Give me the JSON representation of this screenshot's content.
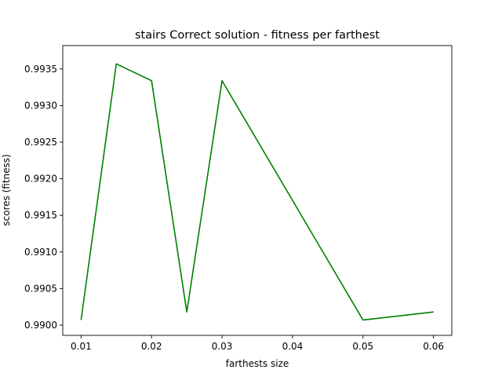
{
  "chart_data": {
    "type": "line",
    "title": "stairs Correct solution - fitness per farthest",
    "xlabel": "farthests size",
    "ylabel": "scores (fitness)",
    "xlim": [
      0.0074,
      0.0626
    ],
    "ylim": [
      0.98986,
      0.99382
    ],
    "x_ticks": [
      "0.01",
      "0.02",
      "0.03",
      "0.04",
      "0.05",
      "0.06"
    ],
    "y_ticks": [
      "0.9900",
      "0.9905",
      "0.9910",
      "0.9915",
      "0.9920",
      "0.9925",
      "0.9930",
      "0.9935"
    ],
    "grid": false,
    "series": [
      {
        "color": "#008000",
        "x": [
          0.01,
          0.015,
          0.02,
          0.025,
          0.03,
          0.05,
          0.06
        ],
        "y": [
          0.99007,
          0.99357,
          0.99334,
          0.99018,
          0.99334,
          0.99007,
          0.99018
        ]
      }
    ]
  }
}
